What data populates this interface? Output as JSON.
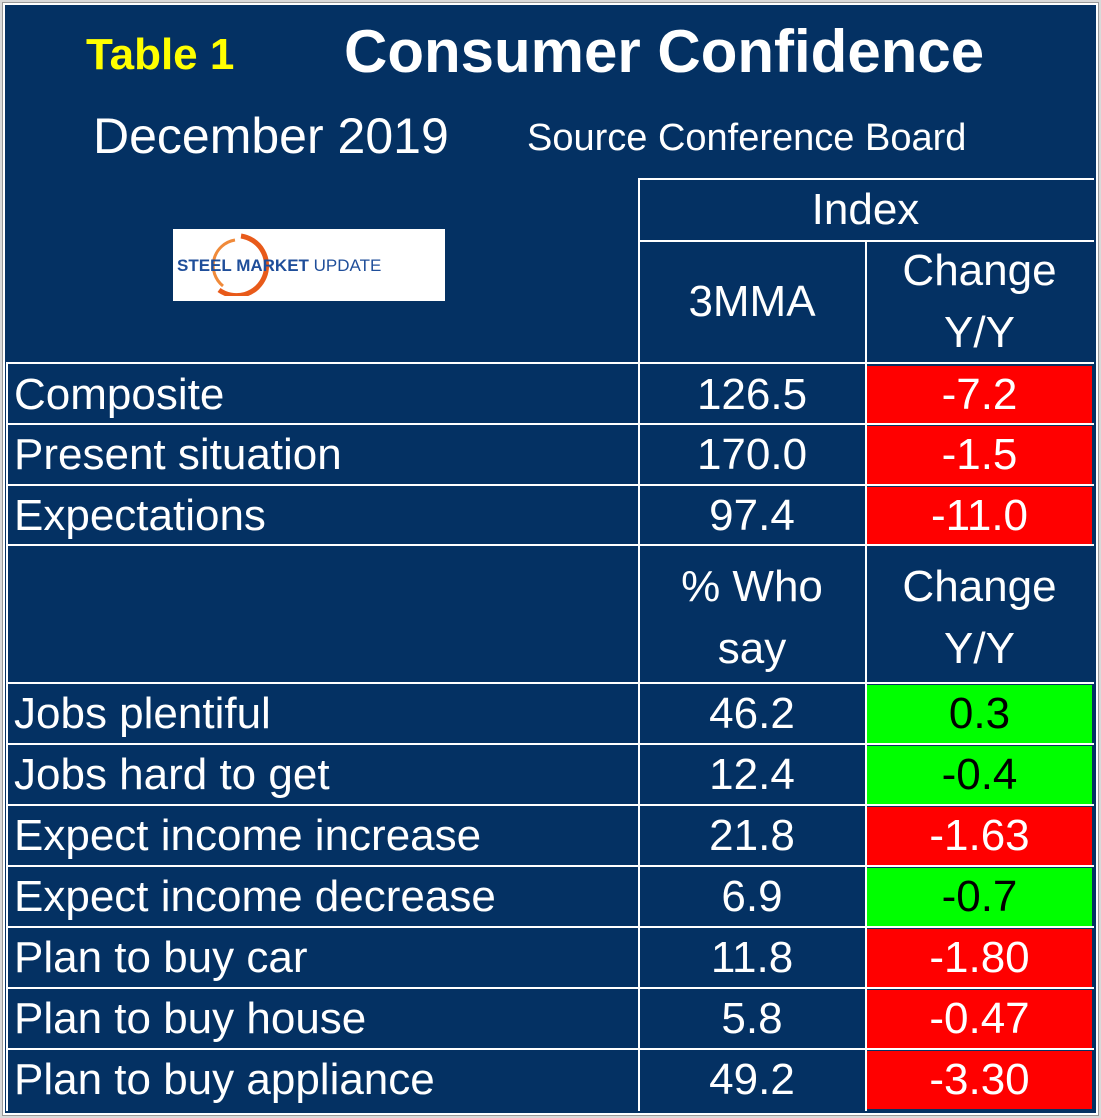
{
  "header": {
    "table_label": "Table 1",
    "title": "Consumer Confidence",
    "month": "December 2019",
    "source": "Source Conference Board"
  },
  "logo": {
    "text_bold": "STEEL MARKET",
    "text_light": "UPDATE"
  },
  "columns": {
    "group": "Index",
    "value": "3MMA",
    "change_line1": "Change",
    "change_line2": "Y/Y",
    "pct_line1": "% Who",
    "pct_line2": "say"
  },
  "index_rows": [
    {
      "label": "Composite",
      "value": "126.5",
      "change": "-7.2"
    },
    {
      "label": "Present situation",
      "value": "170.0",
      "change": "-1.5"
    },
    {
      "label": "Expectations",
      "value": "97.4",
      "change": "-11.0"
    }
  ],
  "survey_rows": [
    {
      "label": "Jobs plentiful",
      "value": "46.2",
      "change": "0.3"
    },
    {
      "label": "Jobs hard to get",
      "value": "12.4",
      "change": "-0.4"
    },
    {
      "label": "Expect income increase",
      "value": "21.8",
      "change": "-1.63"
    },
    {
      "label": "Expect income decrease",
      "value": "6.9",
      "change": "-0.7"
    },
    {
      "label": "Plan to buy car",
      "value": "11.8",
      "change": "-1.80"
    },
    {
      "label": "Plan to buy house",
      "value": "5.8",
      "change": "-0.47"
    },
    {
      "label": "Plan to buy appliance",
      "value": "49.2",
      "change": "-3.30"
    }
  ],
  "colors": {
    "background": "#043163",
    "title_accent": "#ffff00",
    "negative": "#ff0000",
    "positive": "#00ff00"
  },
  "change_status": {
    "index_rows": [
      "negative",
      "negative",
      "negative"
    ],
    "survey_rows": [
      "positive",
      "positive",
      "negative",
      "positive",
      "negative",
      "negative",
      "negative"
    ]
  }
}
